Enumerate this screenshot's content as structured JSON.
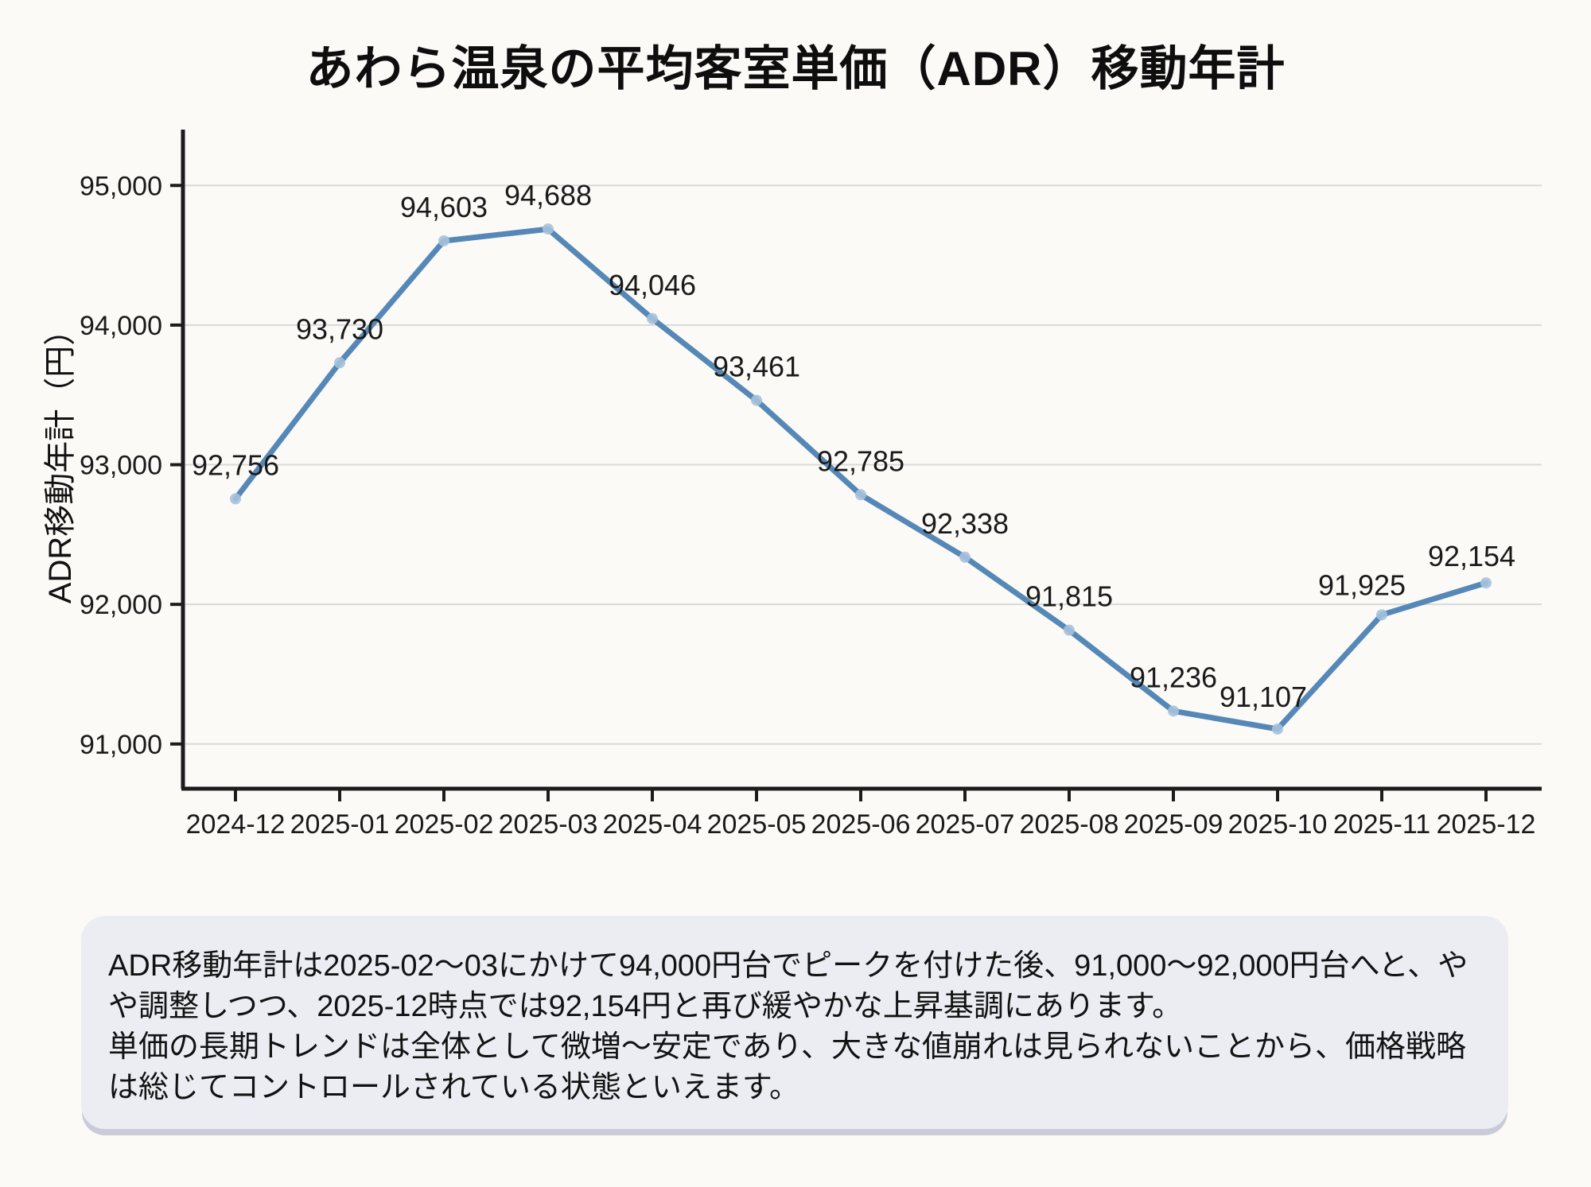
{
  "title": "あわら温泉の平均客室単価（ADR）移動年計",
  "chart_data": {
    "type": "line",
    "title": "あわら温泉の平均客室単価（ADR）移動年計",
    "x": [
      "2024-12",
      "2025-01",
      "2025-02",
      "2025-03",
      "2025-04",
      "2025-05",
      "2025-06",
      "2025-07",
      "2025-08",
      "2025-09",
      "2025-10",
      "2025-11",
      "2025-12"
    ],
    "series": [
      {
        "name": "ADR移動年計",
        "values": [
          92756,
          93730,
          94603,
          94688,
          94046,
          93461,
          92785,
          92338,
          91815,
          91236,
          91107,
          91925,
          92154
        ]
      }
    ],
    "xlabel": "",
    "ylabel": "ADR移動年計（円）",
    "yticks": [
      91000,
      92000,
      93000,
      94000,
      95000
    ],
    "ylim": [
      90680,
      95400
    ],
    "grid": true,
    "legend": false,
    "data_labels": true,
    "line_color": "#5688B7",
    "marker_color": "#A6C2DC"
  },
  "summary": {
    "paragraph1": "ADR移動年計は2025-02～03にかけて94,000円台でピークを付けた後、91,000～92,000円台へと、やや調整しつつ、2025-12時点では92,154円と再び緩やかな上昇基調にあります。",
    "paragraph2": "単価の長期トレンドは全体として微増～安定であり、大きな値崩れは見られないことから、価格戦略は総じてコントロールされている状態といえます。"
  },
  "colors": {
    "background": "#FBFAF7",
    "grid": "#D9D9D9",
    "axis": "#1C1C1C",
    "label_text": "#1A1A1A",
    "box_background": "#ECEDF3",
    "box_shadow": "#C9CBD8"
  }
}
